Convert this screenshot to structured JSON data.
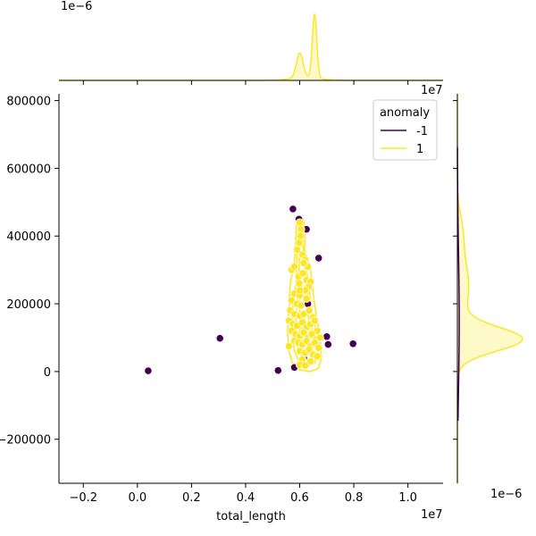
{
  "chart_data": {
    "type": "scatter",
    "title": "",
    "xlabel": "total_length",
    "ylabel": "",
    "x_offset_text": "1e7",
    "y_top_offset_text": "1e7",
    "marg_top_offset_text": "1e−6",
    "marg_right_offset_text": "1e−6",
    "xlim": [
      -0.29,
      1.13
    ],
    "ylim": [
      -330000,
      820000
    ],
    "xticks": [
      -0.2,
      0.0,
      0.2,
      0.4,
      0.6,
      0.8,
      1.0
    ],
    "xtick_labels": [
      "−0.2",
      "0.0",
      "0.2",
      "0.4",
      "0.6",
      "0.8",
      "1.0"
    ],
    "yticks": [
      -200000,
      0,
      200000,
      400000,
      600000,
      800000
    ],
    "ytick_labels": [
      "−200000",
      "0",
      "200000",
      "400000",
      "600000",
      "800000"
    ],
    "grid": false,
    "legend": {
      "title": "anomaly",
      "position": "top-right",
      "entries": [
        {
          "label": "-1",
          "color": "#440154"
        },
        {
          "label": "1",
          "color": "#fde725"
        }
      ]
    },
    "series": [
      {
        "name": "-1",
        "color": "#440154",
        "points": [
          [
            0.04,
            2000
          ],
          [
            0.305,
            98000
          ],
          [
            0.52,
            3000
          ],
          [
            0.58,
            12000
          ],
          [
            0.575,
            480000
          ],
          [
            0.597,
            450000
          ],
          [
            0.625,
            420000
          ],
          [
            0.67,
            335000
          ],
          [
            0.63,
            200000
          ],
          [
            0.615,
            40000
          ],
          [
            0.7,
            103000
          ],
          [
            0.705,
            80000
          ],
          [
            0.797,
            82000
          ]
        ]
      },
      {
        "name": "1",
        "color": "#fde725",
        "points": [
          [
            0.6,
            440000
          ],
          [
            0.605,
            420000
          ],
          [
            0.603,
            400000
          ],
          [
            0.598,
            380000
          ],
          [
            0.59,
            360000
          ],
          [
            0.61,
            345000
          ],
          [
            0.62,
            330000
          ],
          [
            0.63,
            310000
          ],
          [
            0.57,
            300000
          ],
          [
            0.58,
            310000
          ],
          [
            0.595,
            280000
          ],
          [
            0.612,
            290000
          ],
          [
            0.625,
            270000
          ],
          [
            0.64,
            265000
          ],
          [
            0.633,
            250000
          ],
          [
            0.62,
            240000
          ],
          [
            0.58,
            230000
          ],
          [
            0.6,
            225000
          ],
          [
            0.57,
            210000
          ],
          [
            0.59,
            200000
          ],
          [
            0.605,
            195000
          ],
          [
            0.625,
            215000
          ],
          [
            0.565,
            180000
          ],
          [
            0.58,
            170000
          ],
          [
            0.6,
            165000
          ],
          [
            0.615,
            170000
          ],
          [
            0.635,
            180000
          ],
          [
            0.65,
            160000
          ],
          [
            0.56,
            150000
          ],
          [
            0.575,
            140000
          ],
          [
            0.59,
            135000
          ],
          [
            0.61,
            145000
          ],
          [
            0.625,
            130000
          ],
          [
            0.64,
            140000
          ],
          [
            0.655,
            150000
          ],
          [
            0.665,
            120000
          ],
          [
            0.57,
            120000
          ],
          [
            0.585,
            110000
          ],
          [
            0.6,
            105000
          ],
          [
            0.615,
            115000
          ],
          [
            0.63,
            100000
          ],
          [
            0.645,
            110000
          ],
          [
            0.66,
            95000
          ],
          [
            0.675,
            100000
          ],
          [
            0.58,
            90000
          ],
          [
            0.595,
            85000
          ],
          [
            0.61,
            80000
          ],
          [
            0.625,
            90000
          ],
          [
            0.64,
            75000
          ],
          [
            0.655,
            85000
          ],
          [
            0.67,
            70000
          ],
          [
            0.56,
            75000
          ],
          [
            0.6,
            60000
          ],
          [
            0.62,
            55000
          ],
          [
            0.635,
            65000
          ],
          [
            0.65,
            50000
          ],
          [
            0.665,
            45000
          ],
          [
            0.61,
            35000
          ],
          [
            0.64,
            30000
          ],
          [
            0.6,
            20000
          ],
          [
            0.62,
            18000
          ],
          [
            0.6,
            240000
          ],
          [
            0.615,
            320000
          ],
          [
            0.598,
            260000
          ]
        ]
      }
    ]
  }
}
